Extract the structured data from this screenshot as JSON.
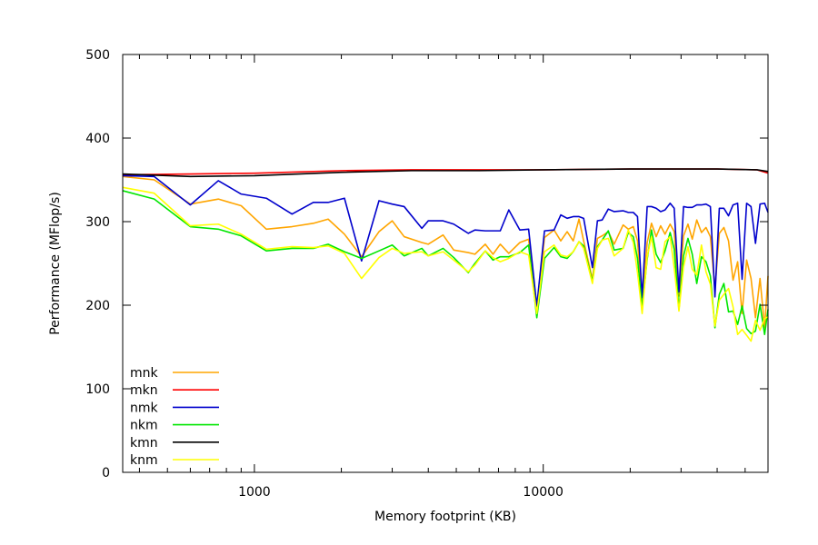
{
  "chart_data": {
    "type": "line",
    "title": "",
    "xlabel": "Memory footprint (KB)",
    "ylabel": "Performance (MFlop/s)",
    "x_scale": "log",
    "xlim": [
      350,
      60000
    ],
    "ylim": [
      0,
      500
    ],
    "x_major_ticks": [
      1000,
      10000
    ],
    "x_tick_labels": [
      "1000",
      "10000"
    ],
    "y_ticks": [
      0,
      100,
      200,
      300,
      400,
      500
    ],
    "y_tick_labels": [
      "0",
      "100",
      "200",
      "300",
      "400",
      "500"
    ],
    "grid": false,
    "legend_position": "bottom-left",
    "series": [
      {
        "name": "mnk",
        "color": "#ffa500",
        "points": [
          [
            350,
            354
          ],
          [
            450,
            350
          ],
          [
            600,
            321
          ],
          [
            750,
            327
          ],
          [
            900,
            319
          ],
          [
            1100,
            291
          ],
          [
            1350,
            294
          ],
          [
            1600,
            298
          ],
          [
            1800,
            303
          ],
          [
            2050,
            285
          ],
          [
            2350,
            258
          ],
          [
            2700,
            288
          ],
          [
            3000,
            301
          ],
          [
            3300,
            282
          ],
          [
            3800,
            275
          ],
          [
            4000,
            273
          ],
          [
            4500,
            284
          ],
          [
            4900,
            266
          ],
          [
            5500,
            263
          ],
          [
            5800,
            261
          ],
          [
            6300,
            273
          ],
          [
            6700,
            261
          ],
          [
            7100,
            273
          ],
          [
            7600,
            262
          ],
          [
            8300,
            275
          ],
          [
            8900,
            279
          ],
          [
            9500,
            193
          ],
          [
            10100,
            281
          ],
          [
            10900,
            290
          ],
          [
            11500,
            277
          ],
          [
            12100,
            288
          ],
          [
            12700,
            277
          ],
          [
            13300,
            303
          ],
          [
            13800,
            277
          ],
          [
            14800,
            231
          ],
          [
            15400,
            280
          ],
          [
            16000,
            283
          ],
          [
            16800,
            288
          ],
          [
            17600,
            273
          ],
          [
            18900,
            296
          ],
          [
            19700,
            291
          ],
          [
            20500,
            294
          ],
          [
            21200,
            277
          ],
          [
            22000,
            203
          ],
          [
            22900,
            275
          ],
          [
            23700,
            298
          ],
          [
            24600,
            282
          ],
          [
            25500,
            295
          ],
          [
            26400,
            285
          ],
          [
            27500,
            297
          ],
          [
            28400,
            288
          ],
          [
            29500,
            211
          ],
          [
            30600,
            283
          ],
          [
            31700,
            297
          ],
          [
            32800,
            279
          ],
          [
            34000,
            302
          ],
          [
            35300,
            287
          ],
          [
            36600,
            293
          ],
          [
            37900,
            282
          ],
          [
            39300,
            219
          ],
          [
            40700,
            286
          ],
          [
            42200,
            293
          ],
          [
            43800,
            277
          ],
          [
            45400,
            230
          ],
          [
            47100,
            252
          ],
          [
            48800,
            190
          ],
          [
            50600,
            254
          ],
          [
            52400,
            232
          ],
          [
            54300,
            185
          ],
          [
            56300,
            232
          ],
          [
            58400,
            173
          ],
          [
            60000,
            235
          ]
        ]
      },
      {
        "name": "mkn",
        "color": "#ff0000",
        "points": [
          [
            350,
            356
          ],
          [
            600,
            357
          ],
          [
            1000,
            358
          ],
          [
            2000,
            361
          ],
          [
            3500,
            362
          ],
          [
            6000,
            362
          ],
          [
            10000,
            362
          ],
          [
            20000,
            363
          ],
          [
            40000,
            363
          ],
          [
            55000,
            362
          ],
          [
            60000,
            358
          ]
        ]
      },
      {
        "name": "nmk",
        "color": "#0000cc",
        "points": [
          [
            350,
            355
          ],
          [
            450,
            354
          ],
          [
            600,
            320
          ],
          [
            750,
            349
          ],
          [
            900,
            333
          ],
          [
            1100,
            328
          ],
          [
            1350,
            309
          ],
          [
            1600,
            323
          ],
          [
            1800,
            323
          ],
          [
            2050,
            328
          ],
          [
            2350,
            253
          ],
          [
            2700,
            325
          ],
          [
            3000,
            321
          ],
          [
            3300,
            318
          ],
          [
            3800,
            292
          ],
          [
            4000,
            301
          ],
          [
            4500,
            301
          ],
          [
            4900,
            297
          ],
          [
            5500,
            286
          ],
          [
            5800,
            290
          ],
          [
            6300,
            289
          ],
          [
            6700,
            289
          ],
          [
            7100,
            289
          ],
          [
            7600,
            314
          ],
          [
            8300,
            290
          ],
          [
            8900,
            291
          ],
          [
            9500,
            199
          ],
          [
            10100,
            289
          ],
          [
            10900,
            290
          ],
          [
            11500,
            308
          ],
          [
            12100,
            304
          ],
          [
            12700,
            306
          ],
          [
            13300,
            306
          ],
          [
            13800,
            304
          ],
          [
            14800,
            245
          ],
          [
            15400,
            301
          ],
          [
            16000,
            302
          ],
          [
            16800,
            315
          ],
          [
            17600,
            312
          ],
          [
            18900,
            313
          ],
          [
            19700,
            311
          ],
          [
            20500,
            311
          ],
          [
            21200,
            306
          ],
          [
            22000,
            209
          ],
          [
            22900,
            318
          ],
          [
            23700,
            318
          ],
          [
            24600,
            316
          ],
          [
            25500,
            312
          ],
          [
            26400,
            314
          ],
          [
            27500,
            322
          ],
          [
            28400,
            316
          ],
          [
            29500,
            216
          ],
          [
            30600,
            318
          ],
          [
            31700,
            317
          ],
          [
            32800,
            317
          ],
          [
            34000,
            320
          ],
          [
            35300,
            320
          ],
          [
            36600,
            321
          ],
          [
            37900,
            318
          ],
          [
            39300,
            210
          ],
          [
            40700,
            316
          ],
          [
            42200,
            316
          ],
          [
            43800,
            307
          ],
          [
            45400,
            320
          ],
          [
            47100,
            322
          ],
          [
            48800,
            231
          ],
          [
            50600,
            322
          ],
          [
            52400,
            318
          ],
          [
            54300,
            274
          ],
          [
            56300,
            321
          ],
          [
            58400,
            322
          ],
          [
            60000,
            311
          ]
        ]
      },
      {
        "name": "nkm",
        "color": "#00e600",
        "points": [
          [
            350,
            337
          ],
          [
            450,
            327
          ],
          [
            600,
            294
          ],
          [
            750,
            291
          ],
          [
            900,
            283
          ],
          [
            1100,
            265
          ],
          [
            1350,
            268
          ],
          [
            1600,
            268
          ],
          [
            1800,
            273
          ],
          [
            2050,
            264
          ],
          [
            2350,
            256
          ],
          [
            2700,
            265
          ],
          [
            3000,
            272
          ],
          [
            3300,
            259
          ],
          [
            3800,
            268
          ],
          [
            4000,
            259
          ],
          [
            4500,
            268
          ],
          [
            4900,
            257
          ],
          [
            5500,
            239
          ],
          [
            5800,
            250
          ],
          [
            6300,
            265
          ],
          [
            6700,
            254
          ],
          [
            7100,
            258
          ],
          [
            7600,
            258
          ],
          [
            8300,
            263
          ],
          [
            8900,
            272
          ],
          [
            9500,
            185
          ],
          [
            10100,
            256
          ],
          [
            10900,
            269
          ],
          [
            11500,
            258
          ],
          [
            12100,
            256
          ],
          [
            12700,
            264
          ],
          [
            13300,
            276
          ],
          [
            13800,
            271
          ],
          [
            14800,
            228
          ],
          [
            15400,
            270
          ],
          [
            16000,
            278
          ],
          [
            16800,
            289
          ],
          [
            17600,
            266
          ],
          [
            18900,
            268
          ],
          [
            19700,
            287
          ],
          [
            20500,
            282
          ],
          [
            21200,
            256
          ],
          [
            22000,
            197
          ],
          [
            22900,
            255
          ],
          [
            23700,
            290
          ],
          [
            24600,
            261
          ],
          [
            25500,
            251
          ],
          [
            26400,
            265
          ],
          [
            27500,
            287
          ],
          [
            28400,
            267
          ],
          [
            29500,
            195
          ],
          [
            30600,
            259
          ],
          [
            31700,
            280
          ],
          [
            32800,
            261
          ],
          [
            34000,
            226
          ],
          [
            35300,
            258
          ],
          [
            36600,
            252
          ],
          [
            37900,
            235
          ],
          [
            39300,
            173
          ],
          [
            40700,
            213
          ],
          [
            42200,
            226
          ],
          [
            43800,
            192
          ],
          [
            45400,
            193
          ],
          [
            47100,
            177
          ],
          [
            48800,
            199
          ],
          [
            50600,
            172
          ],
          [
            52400,
            166
          ],
          [
            54300,
            169
          ],
          [
            56300,
            201
          ],
          [
            58400,
            165
          ],
          [
            60000,
            195
          ]
        ]
      },
      {
        "name": "kmn",
        "color": "#000000",
        "points": [
          [
            350,
            357
          ],
          [
            600,
            354
          ],
          [
            1000,
            355
          ],
          [
            2000,
            359
          ],
          [
            3500,
            361
          ],
          [
            6000,
            361
          ],
          [
            10000,
            362
          ],
          [
            20000,
            363
          ],
          [
            40000,
            363
          ],
          [
            55000,
            362
          ],
          [
            60000,
            360
          ]
        ]
      },
      {
        "name": "knm",
        "color": "#ffff00",
        "points": [
          [
            350,
            341
          ],
          [
            450,
            334
          ],
          [
            600,
            295
          ],
          [
            750,
            297
          ],
          [
            900,
            285
          ],
          [
            1100,
            267
          ],
          [
            1350,
            270
          ],
          [
            1600,
            269
          ],
          [
            1800,
            271
          ],
          [
            2050,
            262
          ],
          [
            2350,
            232
          ],
          [
            2700,
            257
          ],
          [
            3000,
            268
          ],
          [
            3300,
            262
          ],
          [
            3800,
            264
          ],
          [
            4000,
            259
          ],
          [
            4500,
            264
          ],
          [
            4900,
            254
          ],
          [
            5500,
            240
          ],
          [
            5800,
            248
          ],
          [
            6300,
            265
          ],
          [
            6700,
            257
          ],
          [
            7100,
            252
          ],
          [
            7600,
            256
          ],
          [
            8300,
            264
          ],
          [
            8900,
            260
          ],
          [
            9500,
            190
          ],
          [
            10100,
            264
          ],
          [
            10900,
            272
          ],
          [
            11500,
            260
          ],
          [
            12100,
            258
          ],
          [
            12700,
            264
          ],
          [
            13300,
            276
          ],
          [
            13800,
            268
          ],
          [
            14800,
            226
          ],
          [
            15400,
            268
          ],
          [
            16000,
            278
          ],
          [
            16800,
            280
          ],
          [
            17600,
            259
          ],
          [
            18900,
            268
          ],
          [
            19700,
            290
          ],
          [
            20500,
            275
          ],
          [
            21200,
            239
          ],
          [
            22000,
            190
          ],
          [
            22900,
            258
          ],
          [
            23700,
            282
          ],
          [
            24600,
            245
          ],
          [
            25500,
            243
          ],
          [
            26400,
            276
          ],
          [
            27500,
            282
          ],
          [
            28400,
            245
          ],
          [
            29500,
            193
          ],
          [
            30600,
            246
          ],
          [
            31700,
            270
          ],
          [
            32800,
            243
          ],
          [
            34000,
            236
          ],
          [
            35300,
            272
          ],
          [
            36600,
            240
          ],
          [
            37900,
            225
          ],
          [
            39300,
            175
          ],
          [
            40700,
            206
          ],
          [
            42200,
            213
          ],
          [
            43800,
            220
          ],
          [
            45400,
            198
          ],
          [
            47100,
            165
          ],
          [
            48800,
            171
          ],
          [
            50600,
            164
          ],
          [
            52400,
            157
          ],
          [
            54300,
            182
          ],
          [
            56300,
            170
          ],
          [
            58400,
            184
          ],
          [
            60000,
            186
          ]
        ]
      }
    ]
  }
}
